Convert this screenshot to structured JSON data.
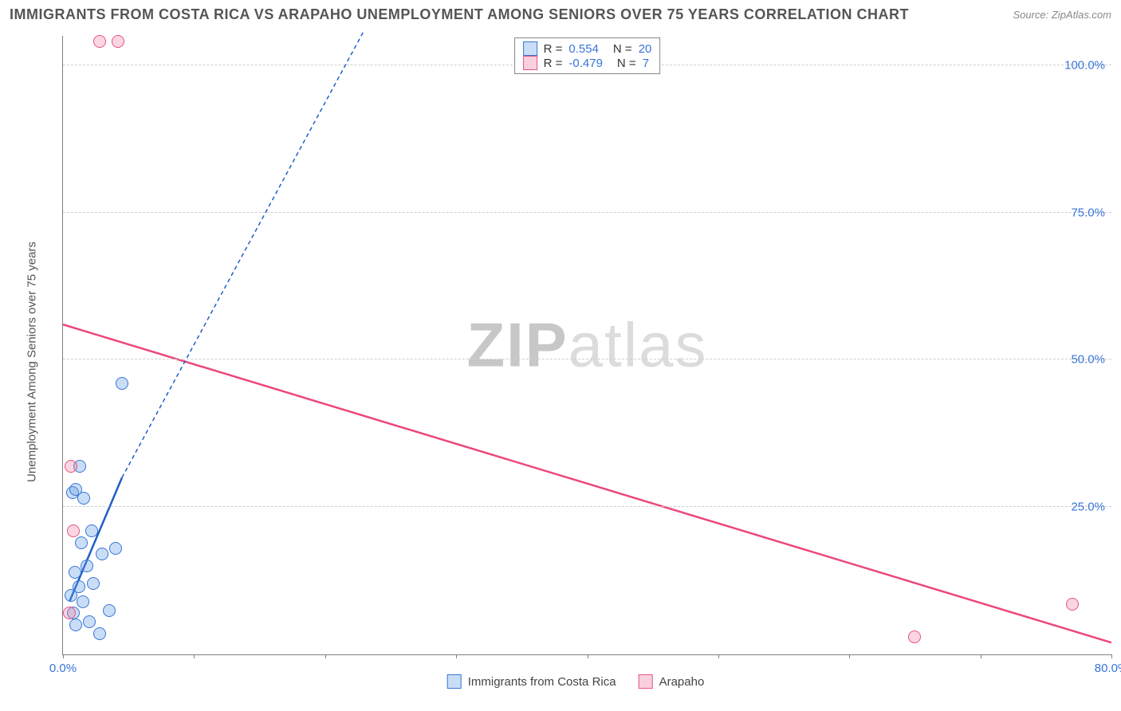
{
  "title": "IMMIGRANTS FROM COSTA RICA VS ARAPAHO UNEMPLOYMENT AMONG SENIORS OVER 75 YEARS CORRELATION CHART",
  "source_label": "Source: ",
  "source_value": "ZipAtlas.com",
  "watermark_a": "ZIP",
  "watermark_b": "atlas",
  "ylabel": "Unemployment Among Seniors over 75 years",
  "chart": {
    "type": "scatter",
    "xlim": [
      0,
      80
    ],
    "ylim": [
      0,
      105
    ],
    "background_color": "#ffffff",
    "grid_color": "#d0d0d0",
    "axis_color": "#808080",
    "tick_color": "#3875d7",
    "tick_fontsize": 15,
    "title_color": "#555555",
    "title_fontsize": 18,
    "x_ticks": [
      0,
      10,
      20,
      30,
      40,
      50,
      60,
      70,
      80
    ],
    "x_tick_labels": {
      "0": "0.0%",
      "80": "80.0%"
    },
    "y_ticks": [
      25,
      50,
      75,
      100
    ],
    "y_tick_labels": {
      "25": "25.0%",
      "50": "50.0%",
      "75": "75.0%",
      "100": "100.0%"
    },
    "series": [
      {
        "name": "Immigrants from Costa Rica",
        "color_fill": "rgba(100,160,230,0.35)",
        "color_stroke": "#3875d7",
        "marker_radius": 8,
        "R": "0.554",
        "N": "20",
        "points": [
          [
            1.0,
            5.0
          ],
          [
            2.0,
            5.5
          ],
          [
            0.8,
            7.0
          ],
          [
            3.5,
            7.5
          ],
          [
            1.5,
            9.0
          ],
          [
            0.6,
            10.0
          ],
          [
            1.2,
            11.5
          ],
          [
            2.3,
            12.0
          ],
          [
            0.9,
            14.0
          ],
          [
            1.8,
            15.0
          ],
          [
            3.0,
            17.0
          ],
          [
            4.0,
            18.0
          ],
          [
            1.4,
            19.0
          ],
          [
            2.2,
            21.0
          ],
          [
            1.6,
            26.5
          ],
          [
            0.7,
            27.5
          ],
          [
            1.0,
            28.0
          ],
          [
            1.3,
            32.0
          ],
          [
            4.5,
            46.0
          ],
          [
            2.8,
            3.5
          ]
        ],
        "trend": {
          "x1": 0.5,
          "y1": 9.0,
          "x2": 4.5,
          "y2": 30.0,
          "solid_until_x": 4.5,
          "dashed_to": [
            23.0,
            106.0
          ],
          "color": "#1f5fc4",
          "width": 2.5
        }
      },
      {
        "name": "Arapaho",
        "color_fill": "rgba(240,120,160,0.30)",
        "color_stroke": "#e75480",
        "marker_radius": 8,
        "R": "-0.479",
        "N": "7",
        "points": [
          [
            0.5,
            7.0
          ],
          [
            0.8,
            21.0
          ],
          [
            0.6,
            32.0
          ],
          [
            2.8,
            104.0
          ],
          [
            4.2,
            104.0
          ],
          [
            65.0,
            3.0
          ],
          [
            77.0,
            8.5
          ]
        ],
        "trend": {
          "x1": 0.0,
          "y1": 56.0,
          "x2": 80.0,
          "y2": 2.0,
          "color": "#ec4878",
          "width": 2.5
        }
      }
    ],
    "legend_top": {
      "r_label": "R =",
      "n_label": "N ="
    },
    "legend_bottom": [
      {
        "label": "Immigrants from Costa Rica",
        "swatch": "blue"
      },
      {
        "label": "Arapaho",
        "swatch": "pink"
      }
    ]
  }
}
